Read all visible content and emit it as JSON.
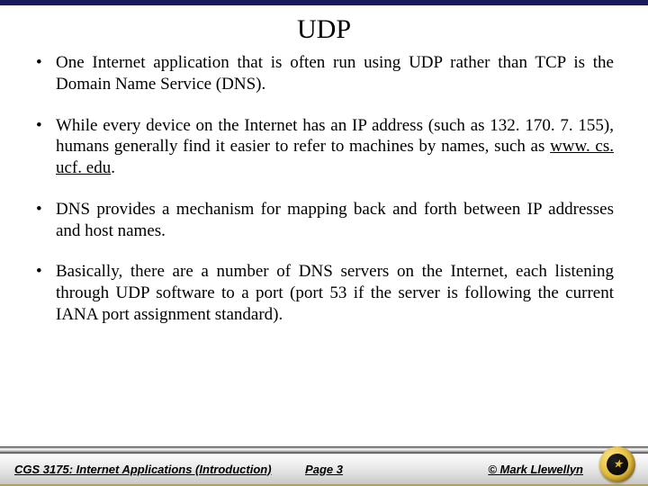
{
  "title": "UDP",
  "bullets": [
    {
      "text": "One Internet application that is often run using UDP rather than TCP is the Domain Name Service (DNS)."
    },
    {
      "prefix": "While every device on the Internet has an IP address (such as 132. 170. 7. 155), humans generally find it easier to refer to machines by names, such as ",
      "link": "www. cs. ucf. edu",
      "suffix": "."
    },
    {
      "text": "DNS provides a mechanism for mapping back and forth between IP addresses and host names."
    },
    {
      "text": "Basically, there are a number of DNS servers on the Internet, each listening through UDP software to a port (port 53 if the server is following the current IANA port assignment standard)."
    }
  ],
  "footer": {
    "left": "CGS 3175: Internet Applications (Introduction)",
    "center": "Page 3",
    "right": "© Mark Llewellyn"
  },
  "colors": {
    "top_bar": "#1a1a5c",
    "text": "#000000",
    "background": "#ffffff"
  }
}
